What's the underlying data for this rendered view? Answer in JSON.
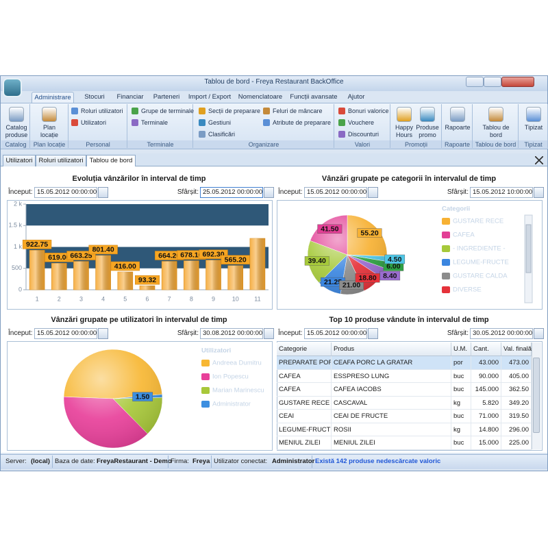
{
  "window": {
    "title": "Tablou de bord - Freya Restaurant BackOffice"
  },
  "ribbon": {
    "tabs": [
      "Administrare",
      "Stocuri",
      "Financiar",
      "Parteneri",
      "Import / Export",
      "Nomenclatoare",
      "Funcții avansate",
      "Ajutor"
    ],
    "groups": [
      {
        "label": "Catalog",
        "buttons": [
          "Catalog produse"
        ]
      },
      {
        "label": "Plan locație",
        "buttons": [
          "Plan locație"
        ]
      },
      {
        "label": "Personal",
        "buttons": [
          "Roluri utilizatori",
          "Utilizatori"
        ]
      },
      {
        "label": "Terminale",
        "buttons": [
          "Grupe de terminale",
          "Terminale"
        ]
      },
      {
        "label": "Organizare",
        "buttons": [
          "Secții de preparare",
          "Gestiuni",
          "Clasificări",
          "Feluri de mâncare",
          "Atribute de preparare"
        ]
      },
      {
        "label": "Valori",
        "buttons": [
          "Bonuri valorice",
          "Vouchere",
          "Discounturi"
        ]
      },
      {
        "label": "Promoții",
        "buttons": [
          "Happy Hours",
          "Produse promo"
        ]
      },
      {
        "label": "Rapoarte",
        "buttons": [
          "Rapoarte"
        ]
      },
      {
        "label": "Tablou de bord",
        "buttons": [
          "Tablou de bord"
        ]
      },
      {
        "label": "Tipizat",
        "buttons": [
          "Tipizat"
        ]
      }
    ]
  },
  "document_tabs": [
    "Utilizatori",
    "Roluri utilizatori",
    "Tablou de bord"
  ],
  "chart_data": [
    {
      "type": "bar",
      "title": "Evoluția vânzărilor în interval de timp",
      "start_label": "Început:",
      "start_date": "15.05.2012 00:00:00",
      "end_label": "Sfârșit:",
      "end_date": "25.05.2012 00:00:00",
      "categories": [
        "1",
        "2",
        "3",
        "4",
        "5",
        "6",
        "7",
        "8",
        "9",
        "10",
        "11"
      ],
      "values": [
        922.75,
        619.0,
        663.25,
        801.4,
        416.0,
        93.32,
        664.2,
        678.1,
        692.3,
        565.2,
        1200
      ],
      "value_labels": [
        "922.75",
        "619.00",
        "663.25",
        "801.40",
        "416.00",
        "93.32",
        "664.20",
        "678.10",
        "692.30",
        "565.20",
        null
      ],
      "color": "#f5a834",
      "ylim": [
        0,
        2000
      ],
      "yticks": [
        0,
        500,
        {
          "value": 1000,
          "label": "1 k"
        },
        {
          "value": 1500,
          "label": "1.5 k"
        },
        {
          "value": 2000,
          "label": "2 k"
        }
      ],
      "grid": true
    },
    {
      "type": "pie",
      "title": "Vânzări grupate pe categorii în intervalul de timp",
      "start_label": "Început:",
      "start_date": "15.05.2012 00:00:00",
      "end_label": "Sfârșit:",
      "end_date": "15.05.2012 10:00:00",
      "legend_title": "Categorii",
      "categories": [
        "GUSTARE RECE",
        "CAFEA",
        "- INGREDIENTE -",
        "LEGUME-FRUCTE",
        "GUSTARE CALDA",
        "DIVERSE",
        null,
        null,
        null
      ],
      "values": [
        55.2,
        41.5,
        39.4,
        21.25,
        21.0,
        18.8,
        8.4,
        6.0,
        4.5
      ],
      "value_labels": [
        "55.20",
        "41.50",
        "39.40",
        "21.25",
        "21.00",
        "18.80",
        "8.40",
        "6.00",
        "4.50"
      ],
      "colors": [
        "#f7b133",
        "#e23f95",
        "#a6c93a",
        "#3b86e0",
        "#8c8c8c",
        "#e5323a",
        "#9a6cd0",
        "#2ea043",
        "#4fc6e6"
      ]
    },
    {
      "type": "pie",
      "title": "Vânzări grupate pe utilizatori în intervalul de timp",
      "start_label": "Început:",
      "start_date": "15.05.2012 00:00:00",
      "end_label": "Sfârșit:",
      "end_date": "30.08.2012 00:00:00",
      "legend_title": "Utilizatori",
      "categories": [
        "Andreea Dumitru",
        "Ion Popescu",
        "Marian Marinescu",
        "Administrator"
      ],
      "values": [
        72,
        57,
        19.5,
        1.5
      ],
      "value_labels": [
        null,
        null,
        null,
        "1.50"
      ],
      "colors": [
        "#f7b733",
        "#e8409a",
        "#a8c83a",
        "#3d8fe0"
      ]
    }
  ],
  "top_products": {
    "title": "Top 10 produse vândute în intervalul de timp",
    "start_label": "Început:",
    "start_date": "15.05.2012 00:00:00",
    "end_label": "Sfârșit:",
    "end_date": "30.05.2012 00:00:00",
    "columns": [
      "Categorie",
      "Produs",
      "U.M.",
      "Cant.",
      "Val. finală"
    ],
    "rows": [
      [
        "PREPARATE PORC",
        "CEAFA PORC LA GRATAR",
        "por",
        "43.000",
        "473.00"
      ],
      [
        "CAFEA",
        "ESSPRESO LUNG",
        "buc",
        "90.000",
        "405.00"
      ],
      [
        "CAFEA",
        "CAFEA IACOBS",
        "buc",
        "145.000",
        "362.50"
      ],
      [
        "GUSTARE RECE",
        "CASCAVAL",
        "kg",
        "5.820",
        "349.20"
      ],
      [
        "CEAI",
        "CEAI DE FRUCTE",
        "buc",
        "71.000",
        "319.50"
      ],
      [
        "LEGUME-FRUCTE",
        "ROSII",
        "kg",
        "14.800",
        "296.00"
      ],
      [
        "MENIUL ZILEI",
        "MENIUL ZILEI",
        "buc",
        "15.000",
        "225.00"
      ]
    ]
  },
  "status_bar": {
    "server_label": "Server:",
    "server": "(local)",
    "database_label": "Baza de date:",
    "database": "FreyaRestaurant - Demo",
    "company_label": "Firma:",
    "company": "Freya",
    "user_label": "Utilizator conectat:",
    "user": "Administrator",
    "notice": "Există 142 produse nedescărcate valoric"
  }
}
